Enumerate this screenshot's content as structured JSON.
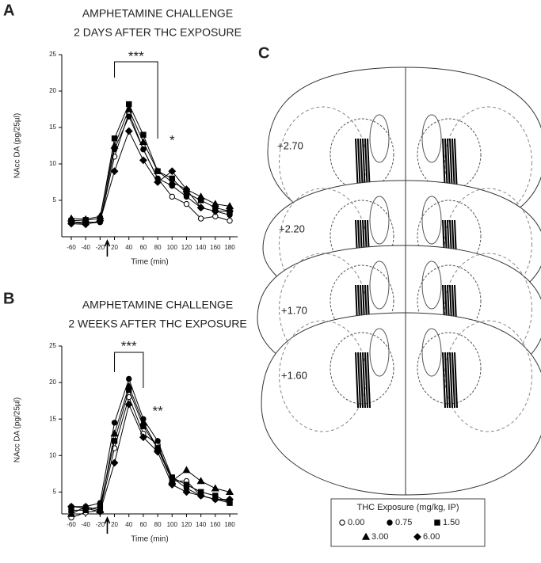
{
  "panel_labels": [
    "A",
    "B",
    "C"
  ],
  "atlas_levels": [
    "+2.70",
    "+2.20",
    "+1.70",
    "+1.60"
  ],
  "chart_data": [
    {
      "type": "line",
      "title": "AMPHETAMINE CHALLENGE",
      "subtitle": "2 DAYS AFTER THC EXPOSURE",
      "x_label": "Time (min)",
      "y_label": "NAcc DA (pg/25µl)",
      "categories": [
        "-60",
        "-40",
        "-20",
        "20",
        "40",
        "60",
        "80",
        "100",
        "120",
        "140",
        "160",
        "180"
      ],
      "ylim": [
        0,
        25
      ],
      "yticks": [
        5,
        10,
        15,
        20,
        25
      ],
      "annotations": [
        "***",
        "*"
      ],
      "legend_title": "THC Exposure (mg/kg, IP)",
      "series": [
        {
          "name": "0.00",
          "color": "#000000",
          "marker": "circle-open",
          "values": [
            2,
            1.8,
            2,
            11,
            17,
            12,
            8,
            5.5,
            4.5,
            2.5,
            2.8,
            2.2
          ]
        },
        {
          "name": "0.75",
          "color": "#000000",
          "marker": "circle",
          "values": [
            2,
            2,
            2,
            12,
            16.5,
            12,
            8,
            7,
            5.5,
            4,
            3.5,
            3
          ]
        },
        {
          "name": "1.50",
          "color": "#000000",
          "marker": "square",
          "values": [
            2.2,
            2.3,
            2.5,
            13.5,
            18.2,
            14,
            9,
            8,
            6,
            5,
            4,
            3.5
          ]
        },
        {
          "name": "3.00",
          "color": "#000000",
          "marker": "triangle",
          "values": [
            2.5,
            2.4,
            2.8,
            12.5,
            17.5,
            13,
            9,
            7.5,
            6.5,
            5.5,
            4.5,
            4.2
          ]
        },
        {
          "name": "6.00",
          "color": "#000000",
          "marker": "diamond",
          "values": [
            1.8,
            1.7,
            2.2,
            9,
            14.5,
            10.5,
            7.5,
            9,
            6.5,
            4,
            3.5,
            3.5
          ]
        }
      ]
    },
    {
      "type": "line",
      "title": "AMPHETAMINE CHALLENGE",
      "subtitle": "2 WEEKS AFTER THC EXPOSURE",
      "x_label": "Time (min)",
      "y_label": "NAcc DA (pg/25µl)",
      "categories": [
        "-60",
        "-40",
        "-20",
        "20",
        "40",
        "60",
        "80",
        "100",
        "120",
        "140",
        "160",
        "180"
      ],
      "ylim": [
        2,
        25
      ],
      "yticks": [
        5,
        10,
        15,
        20,
        25
      ],
      "annotations": [
        "***",
        "**"
      ],
      "series": [
        {
          "color": "#000000",
          "marker": "circle-open",
          "values": [
            1.5,
            2.2,
            2.5,
            11,
            18,
            13,
            11.5,
            6.5,
            6.5,
            4.5,
            4,
            3.8
          ]
        },
        {
          "color": "#000000",
          "marker": "circle",
          "values": [
            3,
            3,
            3.5,
            14.5,
            20.5,
            15,
            12,
            7,
            5.5,
            4.5,
            4,
            3.5
          ]
        },
        {
          "color": "#000000",
          "marker": "square",
          "values": [
            2.5,
            2.5,
            3,
            12,
            19,
            14,
            11,
            7,
            6,
            5,
            4.5,
            3.5
          ]
        },
        {
          "color": "#000000",
          "marker": "triangle",
          "values": [
            2,
            3,
            2.5,
            13,
            19.5,
            14.5,
            11,
            6.5,
            8,
            6.5,
            5.5,
            5
          ]
        },
        {
          "color": "#000000",
          "marker": "diamond",
          "values": [
            3,
            2.8,
            2.3,
            9,
            17,
            12.5,
            10.5,
            6,
            5,
            4.5,
            4,
            4
          ]
        }
      ]
    }
  ]
}
